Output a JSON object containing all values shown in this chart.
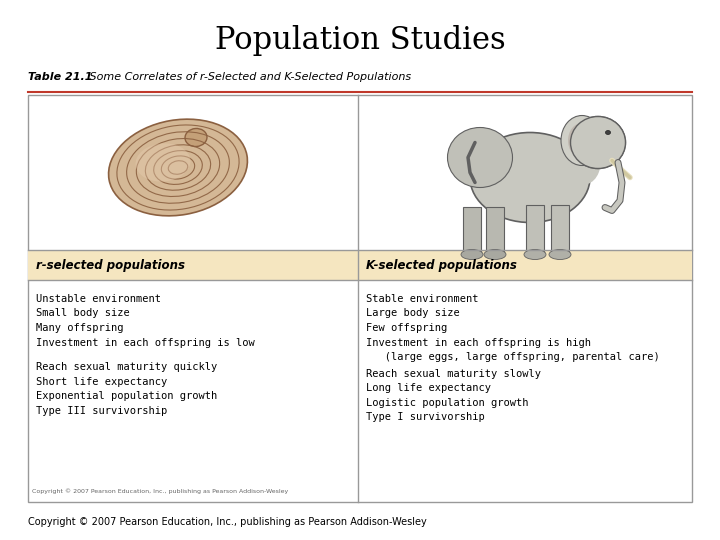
{
  "title": "Population Studies",
  "table_label": "Table 21.1",
  "table_subtitle": " Some Correlates of r-Selected and K-Selected Populations",
  "col1_header": "r-selected populations",
  "col2_header": "K-selected populations",
  "col1_items_group1": [
    "Unstable environment",
    "Small body size",
    "Many offspring",
    "Investment in each offspring is low"
  ],
  "col1_items_group2": [
    "Reach sexual maturity quickly",
    "Short life expectancy",
    "Exponential population growth",
    "Type III survivorship"
  ],
  "col2_items_group1": [
    "Stable environment",
    "Large body size",
    "Few offspring",
    "Investment in each offspring is high",
    "   (large eggs, large offspring, parental care)"
  ],
  "col2_items_group2": [
    "Reach sexual maturity slowly",
    "Long life expectancy",
    "Logistic population growth",
    "Type I survivorship"
  ],
  "background_white": "#ffffff",
  "header_bg": "#f5e6c0",
  "table_border": "#999999",
  "red_line": "#c0392b",
  "title_fontsize": 22,
  "label_fontsize": 8,
  "header_fontsize": 8.5,
  "body_fontsize": 7.5,
  "copyright_inner": "Copyright © 2007 Pearson Education, Inc., publishing as Pearson Addison-Wesley",
  "copyright_outer": "Copyright © 2007 Pearson Education, Inc., publishing as Pearson Addison-Wesley"
}
